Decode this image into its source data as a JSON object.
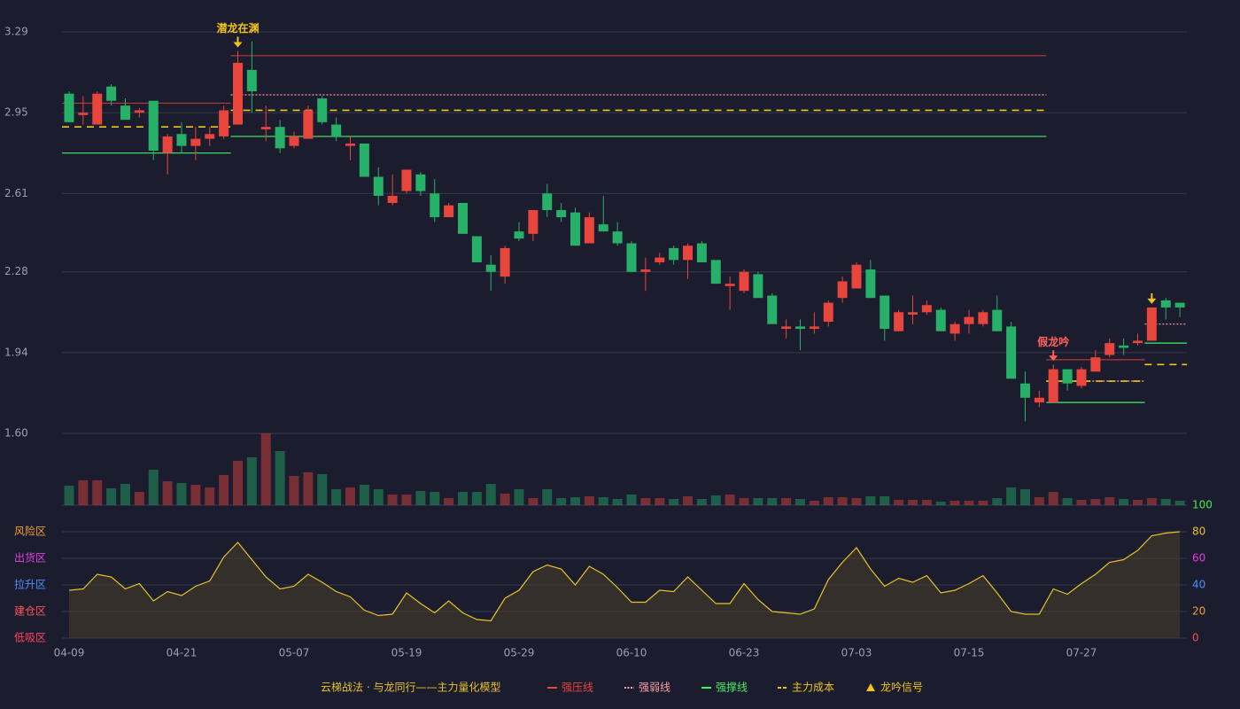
{
  "chart_data": {
    "type": "candlestick",
    "categories": [
      "04-09",
      null,
      null,
      null,
      null,
      null,
      null,
      null,
      "04-21",
      null,
      null,
      null,
      null,
      null,
      null,
      null,
      "05-07",
      null,
      null,
      null,
      null,
      null,
      null,
      null,
      "05-19",
      null,
      null,
      null,
      null,
      null,
      null,
      null,
      "05-29",
      null,
      null,
      null,
      null,
      null,
      null,
      null,
      "06-10",
      null,
      null,
      null,
      null,
      null,
      null,
      null,
      "06-23",
      null,
      null,
      null,
      null,
      null,
      null,
      null,
      "07-03",
      null,
      null,
      null,
      null,
      null,
      null,
      null,
      "07-15",
      null,
      null,
      null,
      null,
      null,
      null,
      null,
      "07-27",
      null,
      null,
      null,
      null,
      null,
      null,
      null
    ],
    "open": [
      3.03,
      2.94,
      2.9,
      3.06,
      2.98,
      2.95,
      3.0,
      2.78,
      2.86,
      2.81,
      2.84,
      2.85,
      2.9,
      3.13,
      2.88,
      2.89,
      2.81,
      2.84,
      3.01,
      2.9,
      2.81,
      2.82,
      2.68,
      2.57,
      2.62,
      2.69,
      2.61,
      2.51,
      2.57,
      2.43,
      2.31,
      2.26,
      2.45,
      2.44,
      2.61,
      2.54,
      2.53,
      2.4,
      2.48,
      2.45,
      2.4,
      2.28,
      2.32,
      2.38,
      2.33,
      2.4,
      2.33,
      2.22,
      2.2,
      2.27,
      2.18,
      2.04,
      2.05,
      2.04,
      2.07,
      2.17,
      2.21,
      2.29,
      2.18,
      2.03,
      2.1,
      2.11,
      2.12,
      2.02,
      2.06,
      2.06,
      2.12,
      2.05,
      1.81,
      1.73,
      1.73,
      1.87,
      1.8,
      1.86,
      1.93,
      1.97,
      1.98,
      1.99,
      2.16,
      2.15
    ],
    "high": [
      3.04,
      3.02,
      3.04,
      3.07,
      3.01,
      2.97,
      3.0,
      2.86,
      2.91,
      2.89,
      2.89,
      2.98,
      3.21,
      3.25,
      2.98,
      2.92,
      2.87,
      2.98,
      3.02,
      2.93,
      2.85,
      2.82,
      2.72,
      2.69,
      2.71,
      2.7,
      2.67,
      2.57,
      2.57,
      2.43,
      2.35,
      2.39,
      2.49,
      2.54,
      2.65,
      2.57,
      2.55,
      2.53,
      2.6,
      2.49,
      2.41,
      2.34,
      2.36,
      2.39,
      2.4,
      2.41,
      2.33,
      2.26,
      2.29,
      2.28,
      2.19,
      2.08,
      2.08,
      2.11,
      2.16,
      2.26,
      2.32,
      2.33,
      2.18,
      2.12,
      2.18,
      2.16,
      2.13,
      2.07,
      2.12,
      2.12,
      2.18,
      2.07,
      1.86,
      1.78,
      1.89,
      1.87,
      1.88,
      1.95,
      2.0,
      2.0,
      2.02,
      2.13,
      2.17,
      2.15
    ],
    "low": [
      2.91,
      2.9,
      2.9,
      2.98,
      2.92,
      2.93,
      2.75,
      2.69,
      2.78,
      2.75,
      2.81,
      2.84,
      2.9,
      2.95,
      2.83,
      2.78,
      2.8,
      2.84,
      2.9,
      2.83,
      2.75,
      2.68,
      2.56,
      2.56,
      2.61,
      2.6,
      2.49,
      2.51,
      2.44,
      2.32,
      2.2,
      2.23,
      2.41,
      2.41,
      2.51,
      2.49,
      2.39,
      2.4,
      2.45,
      2.39,
      2.28,
      2.2,
      2.31,
      2.31,
      2.25,
      2.32,
      2.23,
      2.12,
      2.19,
      2.17,
      2.06,
      2.0,
      1.95,
      2.02,
      2.05,
      2.15,
      2.21,
      2.17,
      1.99,
      2.03,
      2.06,
      2.1,
      2.03,
      1.99,
      2.02,
      2.05,
      2.03,
      1.83,
      1.65,
      1.71,
      1.73,
      1.78,
      1.79,
      1.86,
      1.92,
      1.93,
      1.97,
      1.99,
      2.08,
      2.09
    ],
    "close": [
      2.91,
      2.95,
      3.03,
      3.0,
      2.92,
      2.96,
      2.79,
      2.85,
      2.81,
      2.84,
      2.86,
      2.96,
      3.16,
      3.04,
      2.89,
      2.8,
      2.85,
      2.96,
      2.91,
      2.85,
      2.82,
      2.68,
      2.6,
      2.6,
      2.71,
      2.62,
      2.51,
      2.56,
      2.44,
      2.32,
      2.28,
      2.38,
      2.42,
      2.54,
      2.54,
      2.51,
      2.39,
      2.51,
      2.45,
      2.4,
      2.28,
      2.29,
      2.34,
      2.33,
      2.39,
      2.32,
      2.23,
      2.23,
      2.28,
      2.17,
      2.06,
      2.05,
      2.04,
      2.05,
      2.15,
      2.24,
      2.31,
      2.17,
      2.04,
      2.11,
      2.11,
      2.14,
      2.03,
      2.06,
      2.09,
      2.11,
      2.03,
      1.83,
      1.75,
      1.75,
      1.87,
      1.81,
      1.87,
      1.92,
      1.98,
      1.96,
      1.99,
      2.13,
      2.13,
      2.13
    ],
    "volume": [
      22,
      28,
      28,
      19,
      24,
      15,
      40,
      27,
      25,
      23,
      20,
      34,
      50,
      54,
      81,
      61,
      33,
      37,
      35,
      18,
      20,
      23,
      18,
      12,
      12,
      16,
      15,
      8,
      15,
      15,
      24,
      13,
      18,
      8,
      18,
      8,
      9,
      10,
      9,
      7,
      12,
      8,
      8,
      7,
      10,
      7,
      11,
      12,
      8,
      8,
      8,
      8,
      7,
      5,
      9,
      9,
      8,
      10,
      10,
      6,
      6,
      6,
      4,
      5,
      5,
      5,
      8,
      20,
      18,
      9,
      15,
      8,
      6,
      7,
      9,
      7,
      6,
      8,
      7,
      5
    ],
    "up_color": "#e8453c",
    "down_color": "#26b068",
    "ylim": [
      1.6,
      3.29
    ],
    "yticks": [
      {
        "value": 1.6,
        "label": "1.60"
      },
      1.94,
      2.28,
      2.61,
      2.95,
      3.29
    ],
    "grid": true,
    "indicator": {
      "values": [
        36,
        37,
        48,
        46,
        37,
        41,
        28,
        35,
        32,
        39,
        43,
        61,
        72,
        59,
        46,
        37,
        39,
        48,
        42,
        35,
        31,
        21,
        17,
        18,
        34,
        26,
        19,
        28,
        19,
        14,
        13,
        30,
        36,
        50,
        55,
        52,
        40,
        54,
        48,
        38,
        27,
        27,
        36,
        35,
        46,
        36,
        26,
        26,
        41,
        29,
        20,
        19,
        18,
        22,
        44,
        57,
        68,
        52,
        39,
        45,
        42,
        47,
        34,
        36,
        41,
        47,
        34,
        20,
        18,
        18,
        37,
        33,
        41,
        48,
        57,
        59,
        66,
        77,
        79,
        80
      ],
      "color": "#e6c229",
      "y2lim": [
        0,
        100
      ],
      "y2ticks": [
        0,
        20,
        40,
        60,
        80,
        100
      ],
      "y2tick_colors": [
        "#ff4d4d",
        "#f0a030",
        "#4a90ff",
        "#e040e0",
        "#e6c229",
        "#44ee44"
      ],
      "zones": [
        {
          "label": "风险区",
          "level": 80,
          "color": "#f0a030"
        },
        {
          "label": "出货区",
          "level": 60,
          "color": "#e040e0"
        },
        {
          "label": "拉升区",
          "level": 40,
          "color": "#4a90ff"
        },
        {
          "label": "建仓区",
          "level": 20,
          "color": "#ff5555"
        },
        {
          "label": "低吸区",
          "level": 0,
          "color": "#ff4466"
        }
      ]
    },
    "legend": {
      "title": "云梯战法 · 与龙同行——主力量化模型",
      "title_color": "#e6c229",
      "items": [
        {
          "name": "强压线",
          "color": "#e8453c",
          "style": "solid"
        },
        {
          "name": "强弱线",
          "color": "#ff9fa8",
          "style": "dotted"
        },
        {
          "name": "强撑线",
          "color": "#44ee66",
          "style": "solid"
        },
        {
          "name": "主力成本",
          "color": "#f0c419",
          "style": "dashed"
        },
        {
          "name": "龙吟信号",
          "color": "#f0c419",
          "style": "triangle"
        }
      ]
    },
    "levels": [
      {
        "item": 0,
        "start": 0,
        "end": 11,
        "value": 2.99
      },
      {
        "item": 3,
        "start": 0,
        "end": 11,
        "value": 2.89
      },
      {
        "item": 2,
        "start": 0,
        "end": 11,
        "value": 2.78
      },
      {
        "item": 0,
        "start": 12,
        "end": 69,
        "value": 3.19
      },
      {
        "item": 1,
        "start": 12,
        "end": 69,
        "value": 3.025
      },
      {
        "item": 3,
        "start": 12,
        "end": 69,
        "value": 2.96
      },
      {
        "item": 2,
        "start": 12,
        "end": 69,
        "value": 2.85
      },
      {
        "item": 0,
        "start": 70,
        "end": 76,
        "value": 1.91
      },
      {
        "item": 1,
        "start": 70,
        "end": 76,
        "value": 1.82
      },
      {
        "item": 3,
        "start": 70,
        "end": 76,
        "value": 1.82
      },
      {
        "item": 2,
        "start": 70,
        "end": 76,
        "value": 1.73
      },
      {
        "item": 1,
        "start": 77,
        "end": 79,
        "value": 2.06
      },
      {
        "item": 2,
        "start": 77,
        "end": 79,
        "value": 1.98
      },
      {
        "item": 3,
        "start": 77,
        "end": 79,
        "value": 1.89
      }
    ],
    "signals": [
      {
        "index": 12,
        "label": "潜龙在渊",
        "color": "#f0c419"
      },
      {
        "index": 70,
        "label": "假龙吟",
        "color": "#ff6060"
      },
      {
        "index": 77,
        "color": "#f0c419"
      }
    ]
  }
}
